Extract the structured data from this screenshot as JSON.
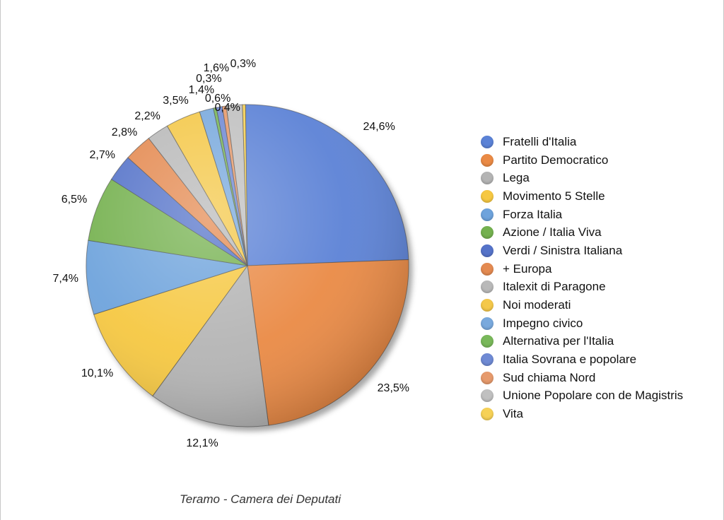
{
  "chart_data": {
    "type": "pie",
    "title": "Teramo - Camera dei Deputati",
    "legend_position": "right",
    "slices": [
      {
        "name": "Fratelli d'Italia",
        "value": 24.6,
        "label": "24,6%",
        "color": "#5b82d6"
      },
      {
        "name": "Partito Democratico",
        "value": 23.5,
        "label": "23,5%",
        "color": "#ea8a45"
      },
      {
        "name": "Lega",
        "value": 12.1,
        "label": "12,1%",
        "color": "#b4b4b4"
      },
      {
        "name": "Movimento 5 Stelle",
        "value": 10.1,
        "label": "10,1%",
        "color": "#f6c842"
      },
      {
        "name": "Forza Italia",
        "value": 7.4,
        "label": "7,4%",
        "color": "#6ea3dc"
      },
      {
        "name": "Azione / Italia Viva",
        "value": 6.5,
        "label": "6,5%",
        "color": "#74b14f"
      },
      {
        "name": "Verdi / Sinistra Italiana",
        "value": 2.7,
        "label": "2,7%",
        "color": "#5573c9"
      },
      {
        "name": "+ Europa",
        "value": 2.8,
        "label": "2,8%",
        "color": "#e48a51"
      },
      {
        "name": "Italexit di Paragone",
        "value": 2.2,
        "label": "2,2%",
        "color": "#b9b9b9"
      },
      {
        "name": "Noi moderati",
        "value": 3.5,
        "label": "3,5%",
        "color": "#f4c84a"
      },
      {
        "name": "Impegno civico",
        "value": 1.4,
        "label": "1,4%",
        "color": "#79a9dd"
      },
      {
        "name": "Alternativa per l'Italia",
        "value": 0.3,
        "label": "0,3%",
        "color": "#79b85a"
      },
      {
        "name": "Italia Sovrana e popolare",
        "value": 0.6,
        "label": "0,6%",
        "color": "#6f8ad4"
      },
      {
        "name": "Sud chiama Nord",
        "value": 0.4,
        "label": "0,4%",
        "color": "#e69a6c"
      },
      {
        "name": "Unione Popolare con de Magistris",
        "value": 1.6,
        "label": "1,6%",
        "color": "#c0c0c0"
      },
      {
        "name": "Vita",
        "value": 0.3,
        "label": "0,3%",
        "color": "#f6d156"
      }
    ]
  }
}
